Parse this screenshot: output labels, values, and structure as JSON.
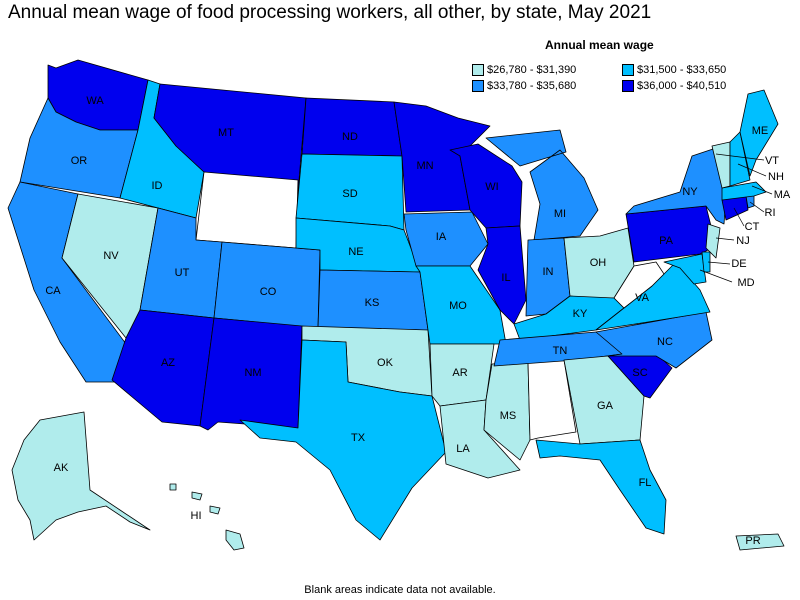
{
  "title": "Annual mean wage of food processing workers, all other, by state, May 2021",
  "legend": {
    "title": "Annual mean wage",
    "items": [
      {
        "label": "$26,780 - $31,390",
        "color": "#b0ecec"
      },
      {
        "label": "$31,500 - $33,650",
        "color": "#00bfff"
      },
      {
        "label": "$33,780 - $35,680",
        "color": "#1e90ff"
      },
      {
        "label": "$36,000 - $40,510",
        "color": "#0000ee"
      }
    ]
  },
  "note": "Blank areas indicate data not available.",
  "states": {
    "WA": "WA",
    "OR": "OR",
    "CA": "CA",
    "NV": "NV",
    "ID": "ID",
    "MT": "MT",
    "UT": "UT",
    "AZ": "AZ",
    "CO": "CO",
    "NM": "NM",
    "ND": "ND",
    "SD": "SD",
    "NE": "NE",
    "KS": "KS",
    "OK": "OK",
    "TX": "TX",
    "MN": "MN",
    "IA": "IA",
    "MO": "MO",
    "AR": "AR",
    "LA": "LA",
    "WI": "WI",
    "IL": "IL",
    "MS": "MS",
    "MI": "MI",
    "IN": "IN",
    "KY": "KY",
    "TN": "TN",
    "OH": "OH",
    "GA": "GA",
    "FL": "FL",
    "SC": "SC",
    "NC": "NC",
    "VA": "VA",
    "PA": "PA",
    "NY": "NY",
    "ME": "ME",
    "VT": "VT",
    "NH": "NH",
    "MA": "MA",
    "RI": "RI",
    "CT": "CT",
    "NJ": "NJ",
    "DE": "DE",
    "MD": "MD",
    "AK": "AK",
    "HI": "HI",
    "PR": "PR"
  }
}
